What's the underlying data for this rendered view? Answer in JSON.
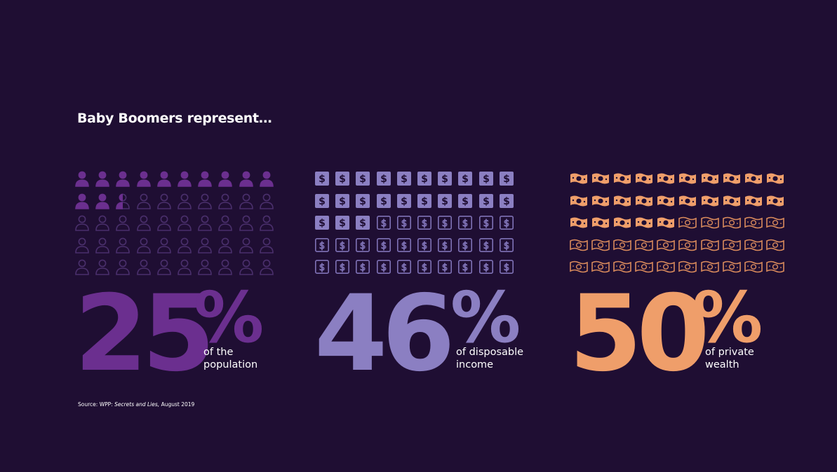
{
  "title": "Baby Boomers represent…",
  "stats": [
    {
      "number": "25",
      "percent_sign": "%",
      "value_percent": 25,
      "desc_line1": "of the",
      "desc_line2": "population",
      "icon": "person-icon",
      "color": "#6b2f8f",
      "outline_color": "#4a2f6c"
    },
    {
      "number": "46",
      "percent_sign": "%",
      "value_percent": 46,
      "desc_line1": "of disposable",
      "desc_line2": "income",
      "icon": "dollar-card-icon",
      "color": "#8b7fc2",
      "outline_color": "#7f72b6"
    },
    {
      "number": "50",
      "percent_sign": "%",
      "value_percent": 50,
      "desc_line1": "of private",
      "desc_line2": "wealth",
      "icon": "banknote-icon",
      "color": "#ef9e6a",
      "outline_color": "#d98a5c"
    }
  ],
  "source": {
    "label": "Source:",
    "org": "WPP:",
    "publication": "Secrets and Lies,",
    "date": "August 2019"
  }
}
